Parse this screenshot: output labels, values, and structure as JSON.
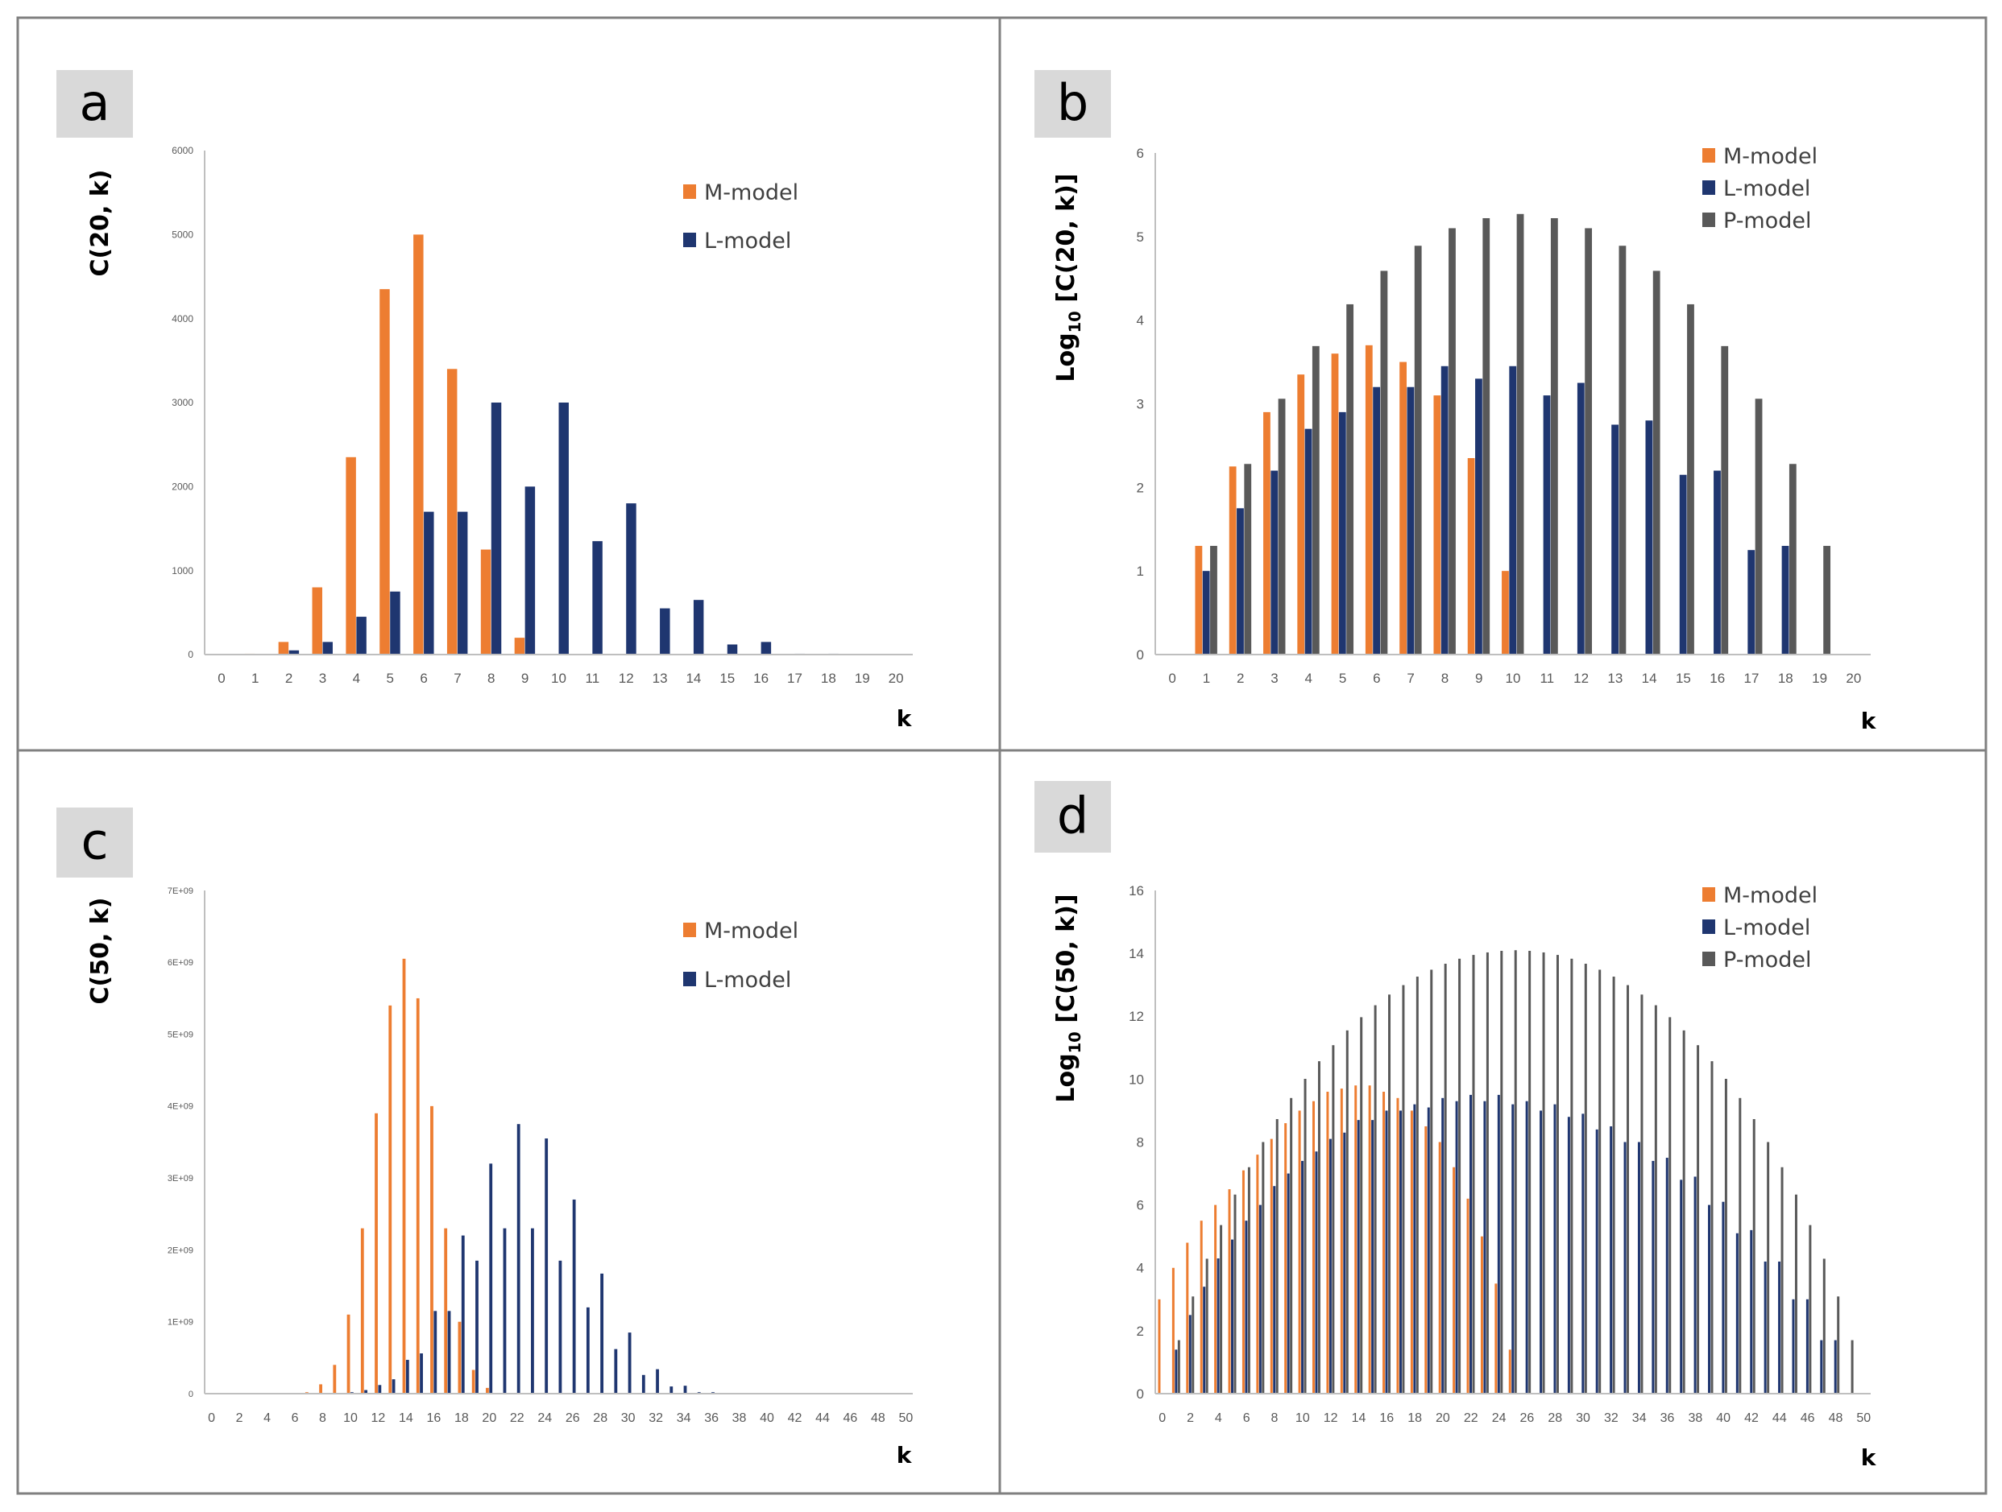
{
  "colors": {
    "M-model": "#ED7D31",
    "L-model": "#1F3670",
    "P-model": "#595959"
  },
  "chart_data": [
    {
      "type": "bar",
      "panel_label": "a",
      "title": "",
      "xlabel": "k",
      "ylabel": {
        "prefix": "C(20, k)",
        "sub": "",
        "suffix": ""
      },
      "categories": [
        0,
        1,
        2,
        3,
        4,
        5,
        6,
        7,
        8,
        9,
        10,
        11,
        12,
        13,
        14,
        15,
        16,
        17,
        18,
        19,
        20
      ],
      "xtick_labels": [
        "0",
        "1",
        "2",
        "3",
        "4",
        "5",
        "6",
        "7",
        "8",
        "9",
        "10",
        "11",
        "12",
        "13",
        "14",
        "15",
        "16",
        "17",
        "18",
        "19",
        "20"
      ],
      "ylim": [
        0,
        6000
      ],
      "yticks": [
        0,
        1000,
        2000,
        3000,
        4000,
        5000,
        6000
      ],
      "ytick_labels": [
        "0",
        "1000",
        "2000",
        "3000",
        "4000",
        "5000",
        "6000"
      ],
      "grid": false,
      "legend_position": "top-right",
      "series": [
        {
          "name": "M-model",
          "values": [
            0,
            10,
            150,
            800,
            2350,
            4350,
            5000,
            3400,
            1250,
            200,
            0,
            0,
            0,
            0,
            0,
            0,
            0,
            0,
            0,
            0,
            0
          ]
        },
        {
          "name": "L-model",
          "values": [
            0,
            0,
            50,
            150,
            450,
            750,
            1700,
            1700,
            3000,
            2000,
            3000,
            1350,
            1800,
            550,
            650,
            120,
            150,
            10,
            10,
            0,
            0
          ]
        }
      ]
    },
    {
      "type": "bar",
      "panel_label": "b",
      "title": "",
      "xlabel": "k",
      "ylabel": {
        "prefix": "Log",
        "sub": "10",
        "suffix": " [C(20, k)]"
      },
      "categories": [
        0,
        1,
        2,
        3,
        4,
        5,
        6,
        7,
        8,
        9,
        10,
        11,
        12,
        13,
        14,
        15,
        16,
        17,
        18,
        19,
        20
      ],
      "xtick_labels": [
        "0",
        "1",
        "2",
        "3",
        "4",
        "5",
        "6",
        "7",
        "8",
        "9",
        "10",
        "11",
        "12",
        "13",
        "14",
        "15",
        "16",
        "17",
        "18",
        "19",
        "20"
      ],
      "ylim": [
        0,
        6
      ],
      "yticks": [
        0,
        1,
        2,
        3,
        4,
        5,
        6
      ],
      "ytick_labels": [
        "0",
        "1",
        "2",
        "3",
        "4",
        "5",
        "6"
      ],
      "grid": false,
      "legend_position": "top-right",
      "series": [
        {
          "name": "M-model",
          "values": [
            null,
            1.3,
            2.25,
            2.9,
            3.35,
            3.6,
            3.7,
            3.5,
            3.1,
            2.35,
            1.0,
            null,
            null,
            null,
            null,
            null,
            null,
            null,
            null,
            null,
            null
          ]
        },
        {
          "name": "L-model",
          "values": [
            null,
            1.0,
            1.75,
            2.2,
            2.7,
            2.9,
            3.2,
            3.2,
            3.45,
            3.3,
            3.45,
            3.1,
            3.25,
            2.75,
            2.8,
            2.15,
            2.2,
            1.25,
            1.3,
            null,
            null
          ]
        },
        {
          "name": "P-model",
          "values": [
            0,
            1.3,
            2.28,
            3.06,
            3.69,
            4.19,
            4.59,
            4.89,
            5.1,
            5.22,
            5.27,
            5.22,
            5.1,
            4.89,
            4.59,
            4.19,
            3.69,
            3.06,
            2.28,
            1.3,
            0
          ]
        }
      ]
    },
    {
      "type": "bar",
      "panel_label": "c",
      "title": "",
      "xlabel": "k",
      "ylabel": {
        "prefix": "C(50, k)",
        "sub": "",
        "suffix": ""
      },
      "categories": [
        0,
        1,
        2,
        3,
        4,
        5,
        6,
        7,
        8,
        9,
        10,
        11,
        12,
        13,
        14,
        15,
        16,
        17,
        18,
        19,
        20,
        21,
        22,
        23,
        24,
        25,
        26,
        27,
        28,
        29,
        30,
        31,
        32,
        33,
        34,
        35,
        36,
        37,
        38,
        39,
        40,
        41,
        42,
        43,
        44,
        45,
        46,
        47,
        48,
        49,
        50
      ],
      "xtick_labels": [
        "0",
        "",
        "2",
        "",
        "4",
        "",
        "6",
        "",
        "8",
        "",
        "10",
        "",
        "12",
        "",
        "14",
        "",
        "16",
        "",
        "18",
        "",
        "20",
        "",
        "22",
        "",
        "24",
        "",
        "26",
        "",
        "28",
        "",
        "30",
        "",
        "32",
        "",
        "34",
        "",
        "36",
        "",
        "38",
        "",
        "40",
        "",
        "42",
        "",
        "44",
        "",
        "46",
        "",
        "48",
        "",
        "50"
      ],
      "ylim": [
        0,
        7000000000.0
      ],
      "yticks": [
        0,
        1000000000.0,
        2000000000.0,
        3000000000.0,
        4000000000.0,
        5000000000.0,
        6000000000.0,
        7000000000.0
      ],
      "ytick_labels": [
        "0",
        "1E+09",
        "2E+09",
        "3E+09",
        "4E+09",
        "5E+09",
        "6E+09",
        "7E+09"
      ],
      "grid": false,
      "legend_position": "top-right",
      "series": [
        {
          "name": "M-model",
          "values": [
            0,
            0,
            0,
            0,
            0,
            0,
            0,
            20000000.0,
            130000000.0,
            400000000.0,
            1100000000.0,
            2300000000.0,
            3900000000.0,
            5400000000.0,
            6050000000.0,
            5500000000.0,
            4000000000.0,
            2300000000.0,
            1000000000.0,
            330000000.0,
            80000000.0,
            10000000.0,
            0,
            0,
            0,
            0,
            0,
            0,
            0,
            0,
            0,
            0,
            0,
            0,
            0,
            0,
            0,
            0,
            0,
            0,
            0,
            0,
            0,
            0,
            0,
            0,
            0,
            0,
            0,
            0,
            0
          ]
        },
        {
          "name": "L-model",
          "values": [
            0,
            0,
            0,
            0,
            0,
            0,
            0,
            0,
            0,
            0,
            20000000.0,
            50000000.0,
            120000000.0,
            200000000.0,
            470000000.0,
            560000000.0,
            1150000000.0,
            1150000000.0,
            2200000000.0,
            1850000000.0,
            3200000000.0,
            2300000000.0,
            3750000000.0,
            2300000000.0,
            3550000000.0,
            1850000000.0,
            2700000000.0,
            1200000000.0,
            1670000000.0,
            620000000.0,
            850000000.0,
            260000000.0,
            340000000.0,
            100000000.0,
            110000000.0,
            20000000.0,
            20000000.0,
            0,
            0,
            0,
            0,
            0,
            0,
            0,
            0,
            0,
            0,
            0,
            0,
            0,
            0
          ]
        }
      ]
    },
    {
      "type": "bar",
      "panel_label": "d",
      "title": "",
      "xlabel": "k",
      "ylabel": {
        "prefix": "Log",
        "sub": "10",
        "suffix": " [C(50, k)]"
      },
      "categories": [
        0,
        1,
        2,
        3,
        4,
        5,
        6,
        7,
        8,
        9,
        10,
        11,
        12,
        13,
        14,
        15,
        16,
        17,
        18,
        19,
        20,
        21,
        22,
        23,
        24,
        25,
        26,
        27,
        28,
        29,
        30,
        31,
        32,
        33,
        34,
        35,
        36,
        37,
        38,
        39,
        40,
        41,
        42,
        43,
        44,
        45,
        46,
        47,
        48,
        49,
        50
      ],
      "xtick_labels": [
        "0",
        "",
        "2",
        "",
        "4",
        "",
        "6",
        "",
        "8",
        "",
        "10",
        "",
        "12",
        "",
        "14",
        "",
        "16",
        "",
        "18",
        "",
        "20",
        "",
        "22",
        "",
        "24",
        "",
        "26",
        "",
        "28",
        "",
        "30",
        "",
        "32",
        "",
        "34",
        "",
        "36",
        "",
        "38",
        "",
        "40",
        "",
        "42",
        "",
        "44",
        "",
        "46",
        "",
        "48",
        "",
        "50"
      ],
      "ylim": [
        0,
        16
      ],
      "yticks": [
        0,
        2,
        4,
        6,
        8,
        10,
        12,
        14,
        16
      ],
      "ytick_labels": [
        "0",
        "2",
        "4",
        "6",
        "8",
        "10",
        "12",
        "14",
        "16"
      ],
      "grid": false,
      "legend_position": "top-right",
      "series": [
        {
          "name": "M-model",
          "values": [
            3.0,
            4.0,
            4.8,
            5.5,
            6.0,
            6.5,
            7.1,
            7.6,
            8.1,
            8.6,
            9.0,
            9.3,
            9.6,
            9.7,
            9.8,
            9.8,
            9.6,
            9.4,
            9.0,
            8.5,
            8.0,
            7.2,
            6.2,
            5.0,
            3.5,
            1.4,
            null,
            null,
            null,
            null,
            null,
            null,
            null,
            null,
            null,
            null,
            null,
            null,
            null,
            null,
            null,
            null,
            null,
            null,
            null,
            null,
            null,
            null,
            null,
            null,
            null
          ]
        },
        {
          "name": "L-model",
          "values": [
            null,
            1.4,
            2.5,
            3.4,
            4.3,
            4.9,
            5.5,
            6.0,
            6.6,
            7.0,
            7.4,
            7.7,
            8.1,
            8.3,
            8.7,
            8.7,
            9.0,
            9.0,
            9.2,
            9.1,
            9.4,
            9.3,
            9.5,
            9.3,
            9.5,
            9.2,
            9.3,
            9.0,
            9.2,
            8.8,
            8.9,
            8.4,
            8.5,
            8.0,
            8.0,
            7.4,
            7.5,
            6.8,
            6.9,
            6.0,
            6.1,
            5.1,
            5.2,
            4.2,
            4.2,
            3.0,
            3.0,
            1.7,
            1.7,
            null,
            null
          ]
        },
        {
          "name": "P-model",
          "values": [
            0,
            1.7,
            3.09,
            4.29,
            5.36,
            6.33,
            7.2,
            8.0,
            8.73,
            9.4,
            10.01,
            10.57,
            11.08,
            11.55,
            11.97,
            12.35,
            12.69,
            12.99,
            13.26,
            13.48,
            13.67,
            13.83,
            13.95,
            14.03,
            14.08,
            14.1,
            14.08,
            14.03,
            13.95,
            13.83,
            13.67,
            13.48,
            13.26,
            12.99,
            12.69,
            12.35,
            11.97,
            11.55,
            11.08,
            10.57,
            10.01,
            9.4,
            8.73,
            8.0,
            7.2,
            6.33,
            5.36,
            4.29,
            3.09,
            1.7,
            0
          ]
        }
      ]
    }
  ]
}
